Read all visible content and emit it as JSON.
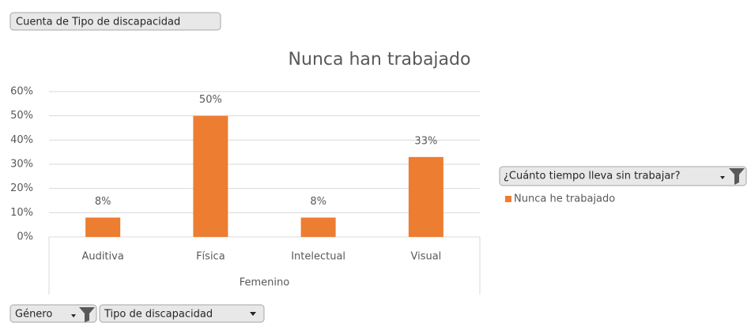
{
  "chart_data": {
    "type": "bar",
    "title": "Nunca han trabajado",
    "value_field_button": "Cuenta de Tipo de discapacidad",
    "legend_title": "¿Cuánto tiempo lleva sin trabajar?",
    "axis_field_buttons": [
      "Género",
      "Tipo de discapacidad"
    ],
    "category_group": "Femenino",
    "categories": [
      "Auditiva",
      "Física",
      "Intelectual",
      "Visual"
    ],
    "series": [
      {
        "name": "Nunca he trabajado",
        "color": "#ed7d31",
        "values": [
          8,
          50,
          8,
          33
        ],
        "value_labels": [
          "8%",
          "50%",
          "8%",
          "33%"
        ]
      }
    ],
    "ylim": [
      0,
      60
    ],
    "yticks": [
      {
        "value": 0,
        "label": "0%"
      },
      {
        "value": 10,
        "label": "10%"
      },
      {
        "value": 20,
        "label": "20%"
      },
      {
        "value": 30,
        "label": "30%"
      },
      {
        "value": 40,
        "label": "40%"
      },
      {
        "value": 50,
        "label": "50%"
      },
      {
        "value": 60,
        "label": "60%"
      }
    ],
    "grid": true
  }
}
